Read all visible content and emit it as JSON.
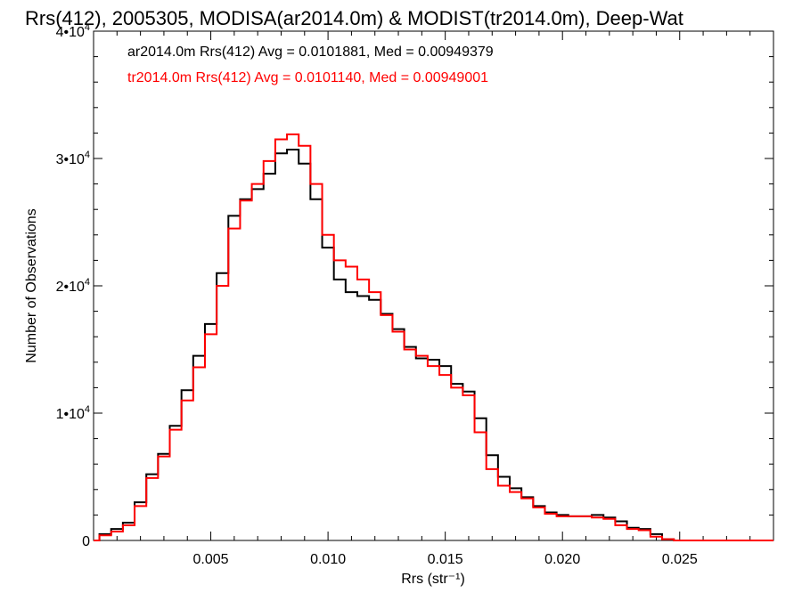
{
  "chart_data": {
    "type": "line",
    "title": "Rrs(412), 2005305, MODISA(ar2014.0m) & MODIST(tr2014.0m), Deep-Wat",
    "xlabel": "Rrs (str⁻¹)",
    "ylabel": "Number of Observations",
    "xlim": [
      0.0,
      0.029
    ],
    "ylim": [
      0,
      40000
    ],
    "x_ticks": [
      0.005,
      0.01,
      0.015,
      0.02,
      0.025
    ],
    "x_tick_labels": [
      "0.005",
      "0.010",
      "0.015",
      "0.020",
      "0.025"
    ],
    "y_ticks": [
      0,
      10000,
      20000,
      30000,
      40000
    ],
    "y_tick_labels": [
      {
        "base": "0",
        "exp": ""
      },
      {
        "base": "1•10",
        "exp": "4"
      },
      {
        "base": "2•10",
        "exp": "4"
      },
      {
        "base": "3•10",
        "exp": "4"
      },
      {
        "base": "4•10",
        "exp": "4"
      }
    ],
    "legend_placement": "top-left",
    "grid": false,
    "series": [
      {
        "name": "ar2014.0m",
        "color": "#000000",
        "stat_text": "ar2014.0m Rrs(412) Avg = 0.0101881, Med = 0.00949379",
        "points": [
          [
            0.0,
            0
          ],
          [
            0.0005,
            500
          ],
          [
            0.001,
            900
          ],
          [
            0.0015,
            1400
          ],
          [
            0.002,
            3000
          ],
          [
            0.0025,
            5200
          ],
          [
            0.003,
            6800
          ],
          [
            0.0035,
            9000
          ],
          [
            0.004,
            11800
          ],
          [
            0.0045,
            14500
          ],
          [
            0.005,
            17000
          ],
          [
            0.0055,
            21000
          ],
          [
            0.006,
            25500
          ],
          [
            0.0065,
            26800
          ],
          [
            0.007,
            27600
          ],
          [
            0.0075,
            28800
          ],
          [
            0.008,
            30400
          ],
          [
            0.0085,
            30700
          ],
          [
            0.009,
            29600
          ],
          [
            0.0095,
            26800
          ],
          [
            0.01,
            23000
          ],
          [
            0.0105,
            20500
          ],
          [
            0.011,
            19500
          ],
          [
            0.0115,
            19200
          ],
          [
            0.012,
            18900
          ],
          [
            0.0125,
            17800
          ],
          [
            0.013,
            16600
          ],
          [
            0.0135,
            15200
          ],
          [
            0.014,
            14300
          ],
          [
            0.0145,
            14200
          ],
          [
            0.015,
            13700
          ],
          [
            0.0155,
            12300
          ],
          [
            0.016,
            11700
          ],
          [
            0.0165,
            9600
          ],
          [
            0.017,
            6700
          ],
          [
            0.0175,
            5000
          ],
          [
            0.018,
            4100
          ],
          [
            0.0185,
            3400
          ],
          [
            0.019,
            2700
          ],
          [
            0.0195,
            2200
          ],
          [
            0.02,
            2000
          ],
          [
            0.0205,
            1900
          ],
          [
            0.021,
            1900
          ],
          [
            0.0215,
            2000
          ],
          [
            0.022,
            1800
          ],
          [
            0.0225,
            1500
          ],
          [
            0.023,
            1000
          ],
          [
            0.0235,
            900
          ],
          [
            0.024,
            500
          ],
          [
            0.0245,
            100
          ],
          [
            0.025,
            0
          ],
          [
            0.029,
            0
          ]
        ]
      },
      {
        "name": "tr2014.0m",
        "color": "#ff0000",
        "stat_text": "tr2014.0m Rrs(412) Avg = 0.0101140, Med = 0.00949001",
        "points": [
          [
            0.0,
            0
          ],
          [
            0.0005,
            400
          ],
          [
            0.001,
            700
          ],
          [
            0.0015,
            1200
          ],
          [
            0.002,
            2700
          ],
          [
            0.0025,
            4900
          ],
          [
            0.003,
            6600
          ],
          [
            0.0035,
            8700
          ],
          [
            0.004,
            11000
          ],
          [
            0.0045,
            13600
          ],
          [
            0.005,
            16200
          ],
          [
            0.0055,
            20000
          ],
          [
            0.006,
            24500
          ],
          [
            0.0065,
            26700
          ],
          [
            0.007,
            28000
          ],
          [
            0.0075,
            29800
          ],
          [
            0.008,
            31500
          ],
          [
            0.0085,
            31900
          ],
          [
            0.009,
            31000
          ],
          [
            0.0095,
            28000
          ],
          [
            0.01,
            24000
          ],
          [
            0.0105,
            22000
          ],
          [
            0.011,
            21500
          ],
          [
            0.0115,
            20500
          ],
          [
            0.012,
            19500
          ],
          [
            0.0125,
            17700
          ],
          [
            0.013,
            16400
          ],
          [
            0.0135,
            15000
          ],
          [
            0.014,
            14500
          ],
          [
            0.0145,
            13700
          ],
          [
            0.015,
            13000
          ],
          [
            0.0155,
            12000
          ],
          [
            0.016,
            11400
          ],
          [
            0.0165,
            8500
          ],
          [
            0.017,
            5600
          ],
          [
            0.0175,
            4300
          ],
          [
            0.018,
            3800
          ],
          [
            0.0185,
            3300
          ],
          [
            0.019,
            2600
          ],
          [
            0.0195,
            2100
          ],
          [
            0.02,
            1900
          ],
          [
            0.0205,
            1900
          ],
          [
            0.021,
            1900
          ],
          [
            0.0215,
            1800
          ],
          [
            0.022,
            1700
          ],
          [
            0.0225,
            1200
          ],
          [
            0.023,
            900
          ],
          [
            0.0235,
            800
          ],
          [
            0.024,
            300
          ],
          [
            0.0245,
            100
          ],
          [
            0.025,
            0
          ],
          [
            0.029,
            0
          ]
        ]
      }
    ]
  }
}
